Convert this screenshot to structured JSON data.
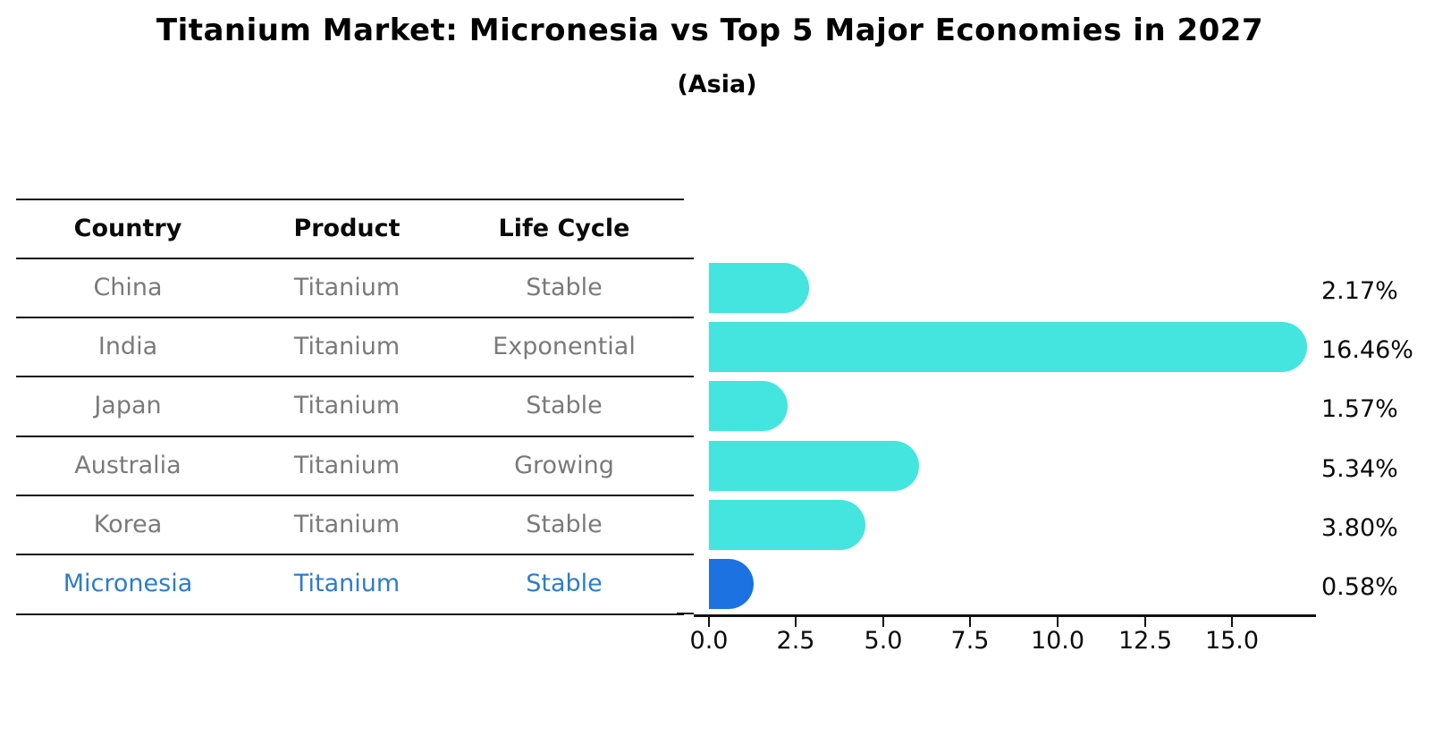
{
  "header": {
    "title": "Titanium Market: Micronesia vs Top 5 Major Economies in 2027",
    "subtitle": "(Asia)"
  },
  "table": {
    "columns": [
      "Country",
      "Product",
      "Life Cycle"
    ],
    "rows": [
      {
        "country": "China",
        "product": "Titanium",
        "life_cycle": "Stable",
        "highlight": false
      },
      {
        "country": "India",
        "product": "Titanium",
        "life_cycle": "Exponential",
        "highlight": false
      },
      {
        "country": "Japan",
        "product": "Titanium",
        "life_cycle": "Stable",
        "highlight": false
      },
      {
        "country": "Australia",
        "product": "Titanium",
        "life_cycle": "Growing",
        "highlight": false
      },
      {
        "country": "Korea",
        "product": "Titanium",
        "life_cycle": "Stable",
        "highlight": false
      },
      {
        "country": "Micronesia",
        "product": "Titanium",
        "life_cycle": "Stable",
        "highlight": true
      }
    ]
  },
  "chart_data": {
    "type": "bar",
    "orientation": "horizontal",
    "title": "Titanium Market: Micronesia vs Top 5 Major Economies in 2027",
    "subtitle": "(Asia)",
    "categories": [
      "China",
      "India",
      "Japan",
      "Australia",
      "Korea",
      "Micronesia"
    ],
    "values": [
      2.17,
      16.46,
      1.57,
      5.34,
      3.8,
      0.58
    ],
    "value_labels": [
      "2.17%",
      "16.46%",
      "1.57%",
      "5.34%",
      "3.80%",
      "0.58%"
    ],
    "xticks": [
      0.0,
      2.5,
      5.0,
      7.5,
      10.0,
      12.5,
      15.0
    ],
    "xticklabels": [
      "0.0",
      "2.5",
      "5.0",
      "7.5",
      "10.0",
      "12.5",
      "15.0"
    ],
    "xlim": [
      0,
      17.4
    ],
    "grid": false,
    "bar_color": "#44E5DE",
    "highlight_color": "#1B72E0",
    "highlight_text_color": "#2E7CC9",
    "highlight_index": 5
  }
}
